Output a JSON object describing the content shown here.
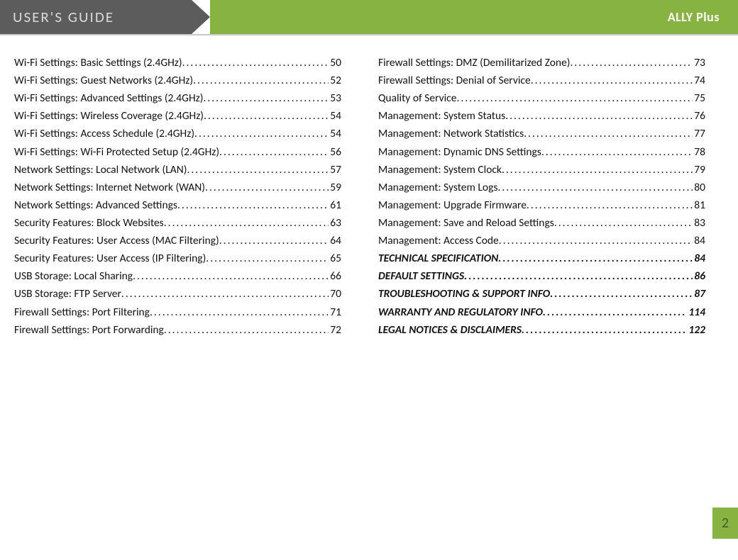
{
  "header": {
    "title": "USER'S  GUIDE",
    "product": "ALLY Plus"
  },
  "colors": {
    "header_dark": "#5d5c5c",
    "header_green": "#87b340",
    "header_title": "#d9dbd9",
    "header_product": "#ffffff",
    "page_number": "#4b5a2d",
    "text": "#111111"
  },
  "page_number": "2",
  "toc": {
    "left": [
      {
        "label": "Wi-Fi Settings: Basic Settings (2.4GHz)",
        "page": "50",
        "style": "normal"
      },
      {
        "label": "Wi-Fi Settings: Guest Networks (2.4GHz)",
        "page": "52",
        "style": "normal"
      },
      {
        "label": "Wi-Fi Settings: Advanced Settings (2.4GHz)",
        "page": "53",
        "style": "normal"
      },
      {
        "label": "Wi-Fi Settings: Wireless Coverage (2.4GHz)",
        "page": "54",
        "style": "normal"
      },
      {
        "label": "Wi-Fi Settings: Access Schedule (2.4GHz)",
        "page": "54",
        "style": "normal"
      },
      {
        "label": "Wi-Fi Settings: Wi-Fi Protected Setup (2.4GHz)",
        "page": "56",
        "style": "normal"
      },
      {
        "label": "Network Settings: Local Network (LAN)",
        "page": "57",
        "style": "normal"
      },
      {
        "label": "Network Settings: Internet Network (WAN)",
        "page": "59",
        "style": "normal"
      },
      {
        "label": "Network Settings: Advanced Settings",
        "page": "61",
        "style": "normal"
      },
      {
        "label": "Security Features: Block Websites",
        "page": "63",
        "style": "normal"
      },
      {
        "label": "Security Features: User Access (MAC Filtering)",
        "page": "64",
        "style": "normal"
      },
      {
        "label": "Security Features: User Access (IP Filtering)",
        "page": "65",
        "style": "normal"
      },
      {
        "label": "USB Storage: Local Sharing",
        "page": "66",
        "style": "normal"
      },
      {
        "label": "USB Storage: FTP Server",
        "page": "70",
        "style": "normal"
      },
      {
        "label": "Firewall Settings: Port Filtering",
        "page": "71",
        "style": "normal"
      },
      {
        "label": "Firewall Settings: Port Forwarding",
        "page": "72",
        "style": "normal"
      }
    ],
    "right": [
      {
        "label": "Firewall Settings: DMZ (Demilitarized Zone)",
        "page": "73",
        "style": "normal"
      },
      {
        "label": "Firewall Settings: Denial of Service",
        "page": "74",
        "style": "normal"
      },
      {
        "label": "Quality of Service",
        "page": "75",
        "style": "normal"
      },
      {
        "label": "Management: System Status",
        "page": "76",
        "style": "normal"
      },
      {
        "label": "Management: Network Statistics",
        "page": "77",
        "style": "normal"
      },
      {
        "label": "Management: Dynamic DNS Settings",
        "page": "78",
        "style": "normal"
      },
      {
        "label": "Management: System Clock",
        "page": "79",
        "style": "normal"
      },
      {
        "label": "Management: System Logs",
        "page": "80",
        "style": "normal"
      },
      {
        "label": "Management: Upgrade Firmware",
        "page": "81",
        "style": "normal"
      },
      {
        "label": "Management: Save and Reload Settings",
        "page": "83",
        "style": "normal"
      },
      {
        "label": "Management: Access Code",
        "page": "84",
        "style": "normal"
      },
      {
        "label": "TECHNICAL SPECIFICATION",
        "page": "84",
        "style": "bold-italic"
      },
      {
        "label": "DEFAULT SETTINGS",
        "page": "86",
        "style": "bold-italic"
      },
      {
        "label": "TROUBLESHOOTING & SUPPORT INFO",
        "page": "87",
        "style": "bold-italic"
      },
      {
        "label": "WARRANTY AND REGULATORY INFO",
        "page": "114",
        "style": "bold-italic"
      },
      {
        "label": "LEGAL NOTICES & DISCLAIMERS",
        "page": "122",
        "style": "bold-italic"
      }
    ]
  }
}
